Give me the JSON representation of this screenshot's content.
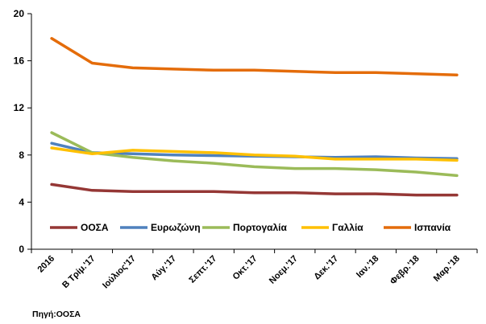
{
  "chart_data": {
    "type": "line",
    "categories": [
      "2016",
      "Β Τρίμ.'17",
      "Ιούλιος'17",
      "Αύγ.'17",
      "Σεπτ.'17",
      "Οκτ.'17",
      "Νοεμ.'17",
      "Δεκ.'17",
      "Ιαν.'18",
      "Φεβρ.'18",
      "Μαρ.'18"
    ],
    "ylim": [
      0,
      20
    ],
    "yticks": [
      0,
      4,
      8,
      12,
      16,
      20
    ],
    "grid": false,
    "legend_position": "bottom-inside",
    "series": [
      {
        "name": "ΟΟΣΑ",
        "color": "#953735",
        "values": [
          5.5,
          5.0,
          4.9,
          4.9,
          4.9,
          4.8,
          4.8,
          4.7,
          4.7,
          4.6,
          4.6
        ]
      },
      {
        "name": "Ευρωζώνη",
        "color": "#4F81BD",
        "values": [
          9.0,
          8.2,
          8.1,
          8.0,
          7.95,
          7.9,
          7.85,
          7.8,
          7.85,
          7.75,
          7.7
        ]
      },
      {
        "name": "Πορτογαλία",
        "color": "#9BBB59",
        "values": [
          9.9,
          8.2,
          7.8,
          7.5,
          7.3,
          7.0,
          6.85,
          6.85,
          6.75,
          6.55,
          6.25
        ]
      },
      {
        "name": "Γαλλία",
        "color": "#FFC000",
        "values": [
          8.6,
          8.1,
          8.4,
          8.3,
          8.2,
          8.0,
          7.9,
          7.65,
          7.65,
          7.65,
          7.55
        ]
      },
      {
        "name": "Ισπανία",
        "color": "#E46C0A",
        "values": [
          17.9,
          15.8,
          15.4,
          15.3,
          15.2,
          15.2,
          15.1,
          15.0,
          15.0,
          14.9,
          14.8
        ]
      }
    ]
  },
  "source": "Πηγή:ΟΟΣΑ"
}
